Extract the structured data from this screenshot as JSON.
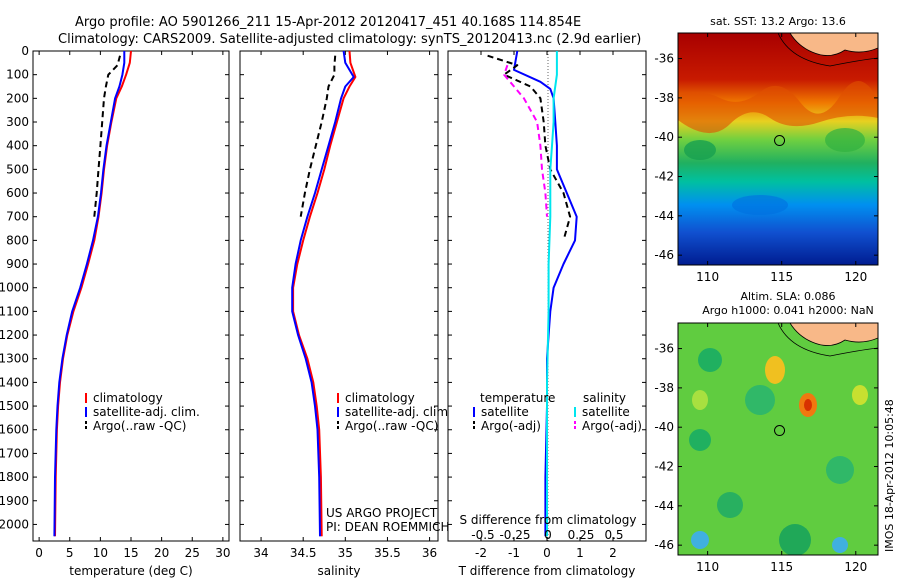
{
  "header": {
    "line1": "Argo profile: AO 5901266_211 15-Apr-2012 20120417_451 40.168S 114.854E",
    "line2": "Climatology: CARS2009. Satellite-adjusted climatology: synTS_20120413.nc (2.9d earlier)"
  },
  "side_label": "IMOS 18-Apr-2012 10:05:48",
  "chart_data": [
    {
      "id": "temperature",
      "type": "line",
      "xlabel": "temperature (deg C)",
      "ylabel": "",
      "xlim": [
        -1,
        31
      ],
      "ylim": [
        2070,
        0
      ],
      "xticks": [
        0,
        5,
        10,
        15,
        20,
        25,
        30
      ],
      "yticks": [
        0,
        100,
        200,
        300,
        400,
        500,
        600,
        700,
        800,
        900,
        1000,
        1100,
        1200,
        1300,
        1400,
        1500,
        1600,
        1700,
        1800,
        1900,
        2000
      ],
      "legend": [
        "climatology",
        "satellite-adj. clim.",
        "Argo(..raw -QC)"
      ],
      "legend_placement": "lower-center",
      "series": [
        {
          "name": "climatology",
          "color": "#ff0000",
          "dash": "",
          "x": [
            15.0,
            14.8,
            14.2,
            13.5,
            12.6,
            11.8,
            11.1,
            10.6,
            10.2,
            9.7,
            9.0,
            8.0,
            6.9,
            5.6,
            4.6,
            3.9,
            3.4,
            3.1,
            2.9,
            2.7,
            2.6
          ],
          "y": [
            0,
            50,
            100,
            150,
            200,
            300,
            400,
            500,
            600,
            700,
            800,
            900,
            1000,
            1100,
            1200,
            1300,
            1400,
            1500,
            1600,
            1800,
            2050
          ]
        },
        {
          "name": "satellite-adj. clim.",
          "color": "#0000ff",
          "dash": "",
          "x": [
            13.9,
            13.9,
            13.6,
            13.1,
            12.4,
            11.7,
            11.0,
            10.5,
            10.1,
            9.6,
            8.8,
            7.8,
            6.7,
            5.4,
            4.5,
            3.8,
            3.3,
            3.0,
            2.8,
            2.6,
            2.5
          ],
          "y": [
            0,
            50,
            100,
            150,
            200,
            300,
            400,
            500,
            600,
            700,
            800,
            900,
            1000,
            1100,
            1200,
            1300,
            1400,
            1500,
            1600,
            1800,
            2050
          ]
        },
        {
          "name": "Argo(..raw -QC)",
          "color": "#000000",
          "dash": "6,4",
          "x": [
            13.2,
            12.8,
            11.3,
            10.9,
            10.6,
            10.3,
            10.0,
            9.7,
            9.4,
            9.0
          ],
          "y": [
            20,
            60,
            100,
            150,
            200,
            300,
            400,
            500,
            600,
            700
          ]
        }
      ]
    },
    {
      "id": "salinity",
      "type": "line",
      "xlabel": "salinity",
      "ylabel": "",
      "xlim": [
        33.75,
        36.1
      ],
      "ylim": [
        2070,
        0
      ],
      "xticks": [
        34,
        34.5,
        35,
        35.5,
        36
      ],
      "legend": [
        "climatology",
        "satellite-adj. clim.",
        "Argo(..raw -QC)"
      ],
      "legend_placement": "lower-right",
      "annotation": [
        "US ARGO PROJECT",
        "PI: DEAN ROEMMICH"
      ],
      "series": [
        {
          "name": "climatology",
          "color": "#ff0000",
          "dash": "",
          "x": [
            35.05,
            35.06,
            35.12,
            35.05,
            34.98,
            34.9,
            34.82,
            34.75,
            34.67,
            34.58,
            34.5,
            34.43,
            34.38,
            34.38,
            34.45,
            34.55,
            34.62,
            34.66,
            34.69,
            34.71,
            34.72
          ],
          "y": [
            0,
            50,
            110,
            150,
            200,
            300,
            400,
            500,
            600,
            700,
            800,
            900,
            1000,
            1100,
            1200,
            1300,
            1400,
            1500,
            1600,
            1800,
            2050
          ]
        },
        {
          "name": "satellite-adj. clim.",
          "color": "#0000ff",
          "dash": "",
          "x": [
            34.98,
            35.0,
            35.1,
            35.0,
            34.95,
            34.88,
            34.8,
            34.72,
            34.64,
            34.55,
            34.47,
            34.41,
            34.37,
            34.37,
            34.44,
            34.53,
            34.6,
            34.64,
            34.67,
            34.69,
            34.7
          ],
          "y": [
            0,
            50,
            110,
            150,
            200,
            300,
            400,
            500,
            600,
            700,
            800,
            900,
            1000,
            1100,
            1200,
            1300,
            1400,
            1500,
            1600,
            1800,
            2050
          ]
        },
        {
          "name": "Argo(..raw -QC)",
          "color": "#000000",
          "dash": "6,4",
          "x": [
            34.88,
            34.87,
            34.87,
            34.8,
            34.78,
            34.72,
            34.65,
            34.58,
            34.52,
            34.47
          ],
          "y": [
            20,
            60,
            100,
            150,
            200,
            300,
            400,
            500,
            600,
            700
          ]
        }
      ]
    },
    {
      "id": "difference",
      "type": "line",
      "xlabel": "T difference from climatology",
      "top_label": "S difference from climatology",
      "xlim": [
        -3,
        3
      ],
      "ylim": [
        2070,
        0
      ],
      "xticks": [
        -2,
        -1,
        0,
        1,
        2
      ],
      "top_ticks": [
        "-0.5",
        "-0.25",
        "0",
        "0.25",
        "0.5"
      ],
      "legend_groups": [
        {
          "title": "temperature",
          "items": [
            "satellite",
            "Argo(-adj)"
          ]
        },
        {
          "title": "salinity",
          "items": [
            "satellite",
            "Argo(-adj)"
          ]
        }
      ],
      "series": [
        {
          "name": "temperature satellite",
          "color": "#0000ff",
          "dash": "",
          "x": [
            -0.9,
            -1.0,
            -0.2,
            0.1,
            0.2,
            0.25,
            0.3,
            0.3,
            0.6,
            0.9,
            0.85,
            0.5,
            0.2,
            0.1,
            0.05,
            0.0,
            0.0,
            0.0,
            -0.05,
            -0.05
          ],
          "y": [
            0,
            80,
            130,
            160,
            200,
            300,
            400,
            500,
            600,
            700,
            800,
            900,
            1000,
            1100,
            1200,
            1300,
            1400,
            1500,
            1800,
            2050
          ]
        },
        {
          "name": "temperature Argo(-adj)",
          "color": "#000000",
          "dash": "6,4",
          "x": [
            -1.8,
            -0.9,
            -1.3,
            -0.5,
            -0.2,
            -0.1,
            -0.05,
            0.1,
            0.5,
            0.7,
            0.5
          ],
          "y": [
            20,
            60,
            100,
            150,
            200,
            300,
            400,
            500,
            600,
            700,
            800
          ]
        },
        {
          "name": "salinity satellite",
          "color": "#00e5ee",
          "dash": "",
          "x": [
            0.3,
            0.3,
            0.2,
            0.2,
            0.15,
            0.1,
            0.1,
            0.05,
            0.05,
            0.0,
            0.0,
            0.0
          ],
          "y": [
            0,
            100,
            200,
            300,
            400,
            500,
            700,
            900,
            1100,
            1400,
            1800,
            2050
          ]
        },
        {
          "name": "salinity Argo(-adj)",
          "color": "#ff00ff",
          "dash": "6,4",
          "x": [
            -1.2,
            -1.3,
            -0.7,
            -0.3,
            -0.2,
            -0.15,
            -0.05,
            0.0
          ],
          "y": [
            60,
            100,
            200,
            300,
            400,
            500,
            600,
            700
          ]
        }
      ]
    },
    {
      "id": "sst-map",
      "type": "heatmap",
      "title": "sat. SST: 13.2 Argo: 13.6",
      "xlim": [
        108,
        121.5
      ],
      "ylim": [
        -46.5,
        -34.7
      ],
      "xticks": [
        110,
        115,
        120
      ],
      "yticks": [
        -36,
        -38,
        -40,
        -42,
        -44,
        -46
      ],
      "marker": {
        "lon": 114.854,
        "lat": -40.168
      }
    },
    {
      "id": "sla-map",
      "type": "heatmap",
      "title": "Altim. SLA: 0.086",
      "subtitle": "Argo h1000: 0.041 h2000: NaN",
      "xlim": [
        108,
        121.5
      ],
      "ylim": [
        -46.5,
        -34.7
      ],
      "xticks": [
        110,
        115,
        120
      ],
      "yticks": [
        -36,
        -38,
        -40,
        -42,
        -44,
        -46
      ],
      "marker": {
        "lon": 114.854,
        "lat": -40.168
      }
    }
  ]
}
